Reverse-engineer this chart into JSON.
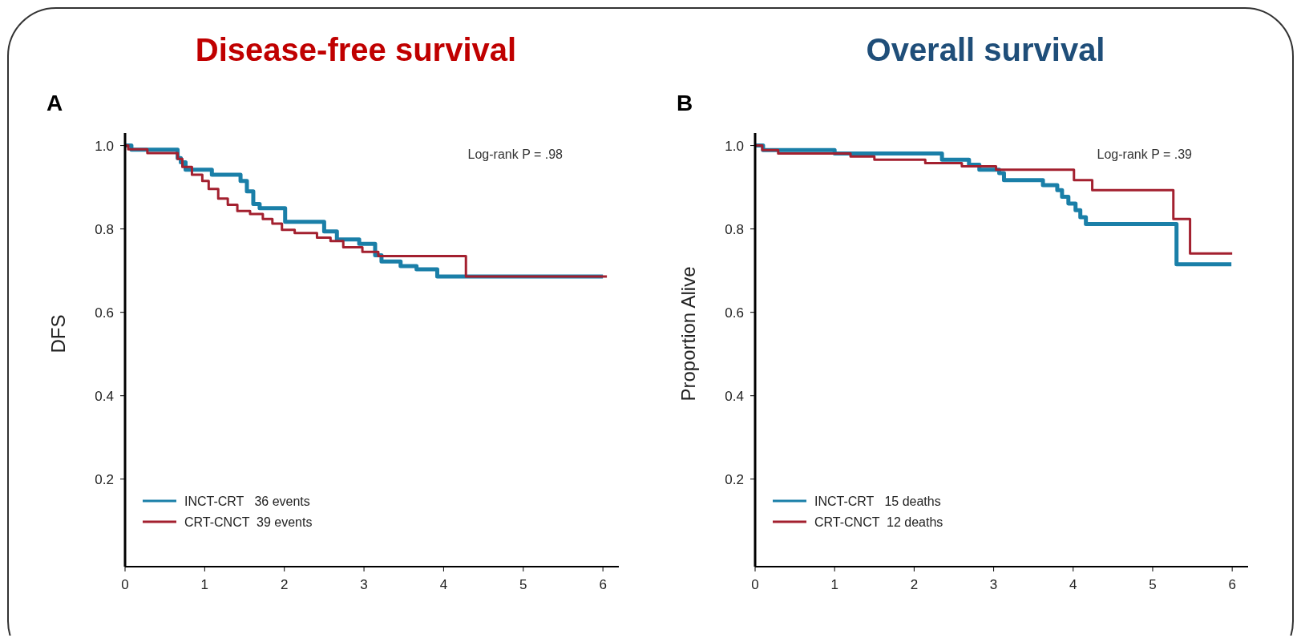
{
  "chart_data": [
    {
      "type": "step",
      "title": "Disease-free survival",
      "ylabel": "DFS",
      "annotations": [
        "A",
        "Log-rank P = .98"
      ],
      "xlim": [
        0,
        6.2
      ],
      "ylim": [
        -0.01,
        1.03
      ],
      "xticks": [
        0,
        1,
        2,
        3,
        4,
        5,
        6
      ],
      "yticks": [
        {
          "value": 0.2,
          "label": "0.2"
        },
        {
          "value": 0.4,
          "label": "0.4"
        },
        {
          "value": 0.6,
          "label": "0.6"
        },
        {
          "value": 0.8,
          "label": "0.8"
        },
        {
          "value": 1.0,
          "label": "1.0"
        }
      ],
      "legend": "bottom left",
      "grid": false,
      "series": [
        {
          "name": "INCT-CRT   36 events",
          "color": "#1a7fa8",
          "x": [
            0,
            0.08,
            0.66,
            0.7,
            0.76,
            1.09,
            1.45,
            1.53,
            1.61,
            1.69,
            2.01,
            2.5,
            2.66,
            2.94,
            3.14,
            3.22,
            3.46,
            3.66,
            3.92,
            6.0
          ],
          "values": [
            1.0,
            0.99,
            0.97,
            0.96,
            0.942,
            0.93,
            0.915,
            0.89,
            0.86,
            0.85,
            0.817,
            0.794,
            0.775,
            0.764,
            0.737,
            0.722,
            0.711,
            0.703,
            0.686,
            0.686
          ]
        },
        {
          "name": "CRT-CNCT  39 events",
          "color": "#a3202f",
          "x": [
            0,
            0.04,
            0.28,
            0.66,
            0.72,
            0.84,
            0.97,
            1.05,
            1.17,
            1.29,
            1.41,
            1.57,
            1.73,
            1.85,
            1.97,
            2.13,
            2.41,
            2.58,
            2.74,
            2.98,
            3.18,
            3.38,
            4.28,
            6.05
          ],
          "values": [
            1.0,
            0.991,
            0.982,
            0.968,
            0.949,
            0.93,
            0.915,
            0.896,
            0.873,
            0.858,
            0.843,
            0.836,
            0.824,
            0.813,
            0.798,
            0.79,
            0.779,
            0.771,
            0.756,
            0.745,
            0.735,
            0.735,
            0.686,
            0.686
          ]
        }
      ]
    },
    {
      "type": "step",
      "title": "Overall survival",
      "ylabel": "Proportion Alive",
      "annotations": [
        "B",
        "Log-rank P = .39"
      ],
      "xlim": [
        0,
        6.2
      ],
      "ylim": [
        -0.01,
        1.03
      ],
      "xticks": [
        0,
        1,
        2,
        3,
        4,
        5,
        6
      ],
      "yticks": [
        {
          "value": 0.2,
          "label": "0.2"
        },
        {
          "value": 0.4,
          "label": "0.4"
        },
        {
          "value": 0.6,
          "label": "0.6"
        },
        {
          "value": 0.8,
          "label": "0.8"
        },
        {
          "value": 1.0,
          "label": "1.0"
        }
      ],
      "legend": "bottom left",
      "grid": false,
      "series": [
        {
          "name": "INCT-CRT   15 deaths",
          "color": "#1a7fa8",
          "x": [
            0,
            0.1,
            1.0,
            2.35,
            2.69,
            2.82,
            3.07,
            3.13,
            3.62,
            3.8,
            3.86,
            3.94,
            4.03,
            4.09,
            4.16,
            5.3,
            5.99
          ],
          "values": [
            1.0,
            0.989,
            0.981,
            0.966,
            0.954,
            0.942,
            0.934,
            0.917,
            0.905,
            0.893,
            0.877,
            0.861,
            0.845,
            0.828,
            0.812,
            0.715,
            0.715
          ]
        },
        {
          "name": "CRT-CNCT  12 deaths",
          "color": "#a3202f",
          "x": [
            0,
            0.09,
            0.29,
            1.2,
            1.5,
            2.14,
            2.6,
            3.03,
            4.01,
            4.24,
            5.26,
            5.47,
            6.0
          ],
          "values": [
            1.0,
            0.989,
            0.981,
            0.974,
            0.966,
            0.958,
            0.95,
            0.942,
            0.917,
            0.893,
            0.824,
            0.741,
            0.741
          ]
        }
      ]
    }
  ]
}
